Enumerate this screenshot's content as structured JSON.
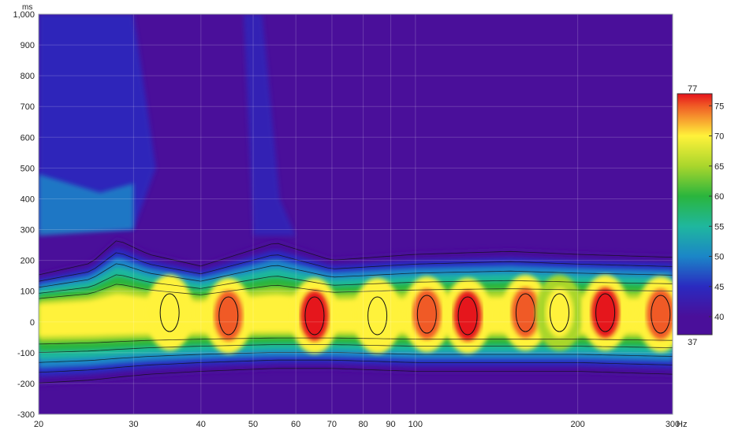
{
  "chart_data": {
    "type": "heatmap",
    "title": "",
    "x_scale": "log",
    "x_unit": "Hz",
    "y_unit": "ms",
    "xlim": [
      20,
      300
    ],
    "ylim": [
      -300,
      1000
    ],
    "x_ticks": [
      20,
      30,
      40,
      50,
      60,
      70,
      80,
      90,
      100,
      200,
      300
    ],
    "x_tick_labels": [
      "20",
      "30",
      "40",
      "50",
      "60",
      "70",
      "80",
      "90",
      "100",
      "200",
      "300"
    ],
    "y_ticks": [
      -300,
      -200,
      -100,
      0,
      100,
      200,
      300,
      400,
      500,
      600,
      700,
      800,
      900,
      1000
    ],
    "y_tick_labels": [
      "-300",
      "-200",
      "-100",
      "0",
      "100",
      "200",
      "300",
      "400",
      "500",
      "600",
      "700",
      "800",
      "900",
      "1,000"
    ],
    "grid": true,
    "legend": {
      "type": "colorbar",
      "placement": "right",
      "min": 37,
      "max": 77,
      "min_label": "37",
      "max_label": "77",
      "ticks": [
        40,
        45,
        50,
        55,
        60,
        65,
        70,
        75
      ],
      "tick_labels": [
        "40",
        "45",
        "50",
        "55",
        "60",
        "65",
        "70",
        "75"
      ]
    },
    "colorscale": [
      {
        "value": 37,
        "color": "#4a0f9a"
      },
      {
        "value": 40,
        "color": "#4a0f9a"
      },
      {
        "value": 45,
        "color": "#2a2ac0"
      },
      {
        "value": 50,
        "color": "#1b86c7"
      },
      {
        "value": 55,
        "color": "#1fb79e"
      },
      {
        "value": 60,
        "color": "#2ab53d"
      },
      {
        "value": 65,
        "color": "#a9d62c"
      },
      {
        "value": 70,
        "color": "#fff23a"
      },
      {
        "value": 75,
        "color": "#f05a25"
      },
      {
        "value": 77,
        "color": "#e5121b"
      }
    ],
    "contour_levels": [
      45,
      50,
      55,
      60,
      65,
      70,
      75
    ],
    "ridge_profile": [
      {
        "hz": 20,
        "top_ms": 160,
        "bottom_ms": -210
      },
      {
        "hz": 25,
        "top_ms": 200,
        "bottom_ms": -200
      },
      {
        "hz": 28,
        "top_ms": 280,
        "bottom_ms": -190
      },
      {
        "hz": 32,
        "top_ms": 230,
        "bottom_ms": -180
      },
      {
        "hz": 40,
        "top_ms": 190,
        "bottom_ms": -170
      },
      {
        "hz": 55,
        "top_ms": 270,
        "bottom_ms": -160
      },
      {
        "hz": 70,
        "top_ms": 210,
        "bottom_ms": -160
      },
      {
        "hz": 100,
        "top_ms": 230,
        "bottom_ms": -170
      },
      {
        "hz": 150,
        "top_ms": 240,
        "bottom_ms": -170
      },
      {
        "hz": 200,
        "top_ms": 230,
        "bottom_ms": -170
      },
      {
        "hz": 300,
        "top_ms": 220,
        "bottom_ms": -180
      }
    ],
    "peaks": [
      {
        "hz": 35,
        "ms": 30,
        "level": 73
      },
      {
        "hz": 45,
        "ms": 20,
        "level": 76
      },
      {
        "hz": 65,
        "ms": 20,
        "level": 77
      },
      {
        "hz": 85,
        "ms": 20,
        "level": 74
      },
      {
        "hz": 105,
        "ms": 25,
        "level": 76
      },
      {
        "hz": 125,
        "ms": 20,
        "level": 77
      },
      {
        "hz": 160,
        "ms": 30,
        "level": 76
      },
      {
        "hz": 185,
        "ms": 30,
        "level": 72
      },
      {
        "hz": 225,
        "ms": 30,
        "level": 77
      },
      {
        "hz": 285,
        "ms": 25,
        "level": 76
      }
    ]
  }
}
